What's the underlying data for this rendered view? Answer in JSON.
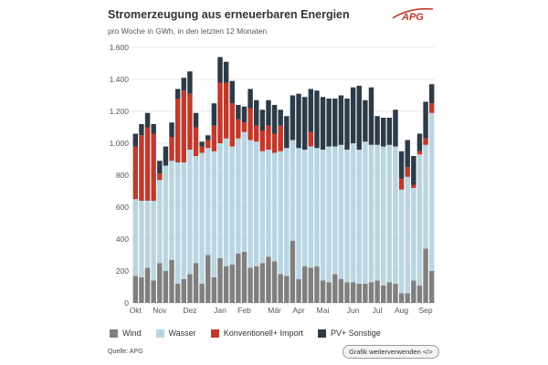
{
  "header": {
    "title": "Stromerzeugung aus erneuerbaren Energien",
    "subtitle": "pro Woche in GWh, in den letzten 12 Monaten",
    "logo_text": "APG"
  },
  "colors": {
    "wind": "#7f7f7f",
    "wasser": "#b9d5e1",
    "konv": "#c0392b",
    "pv": "#2c3b47",
    "grid": "#e0e0e0",
    "axis_text": "#555555"
  },
  "chart_data": {
    "type": "bar",
    "stacked": true,
    "title": "Stromerzeugung aus erneuerbaren Energien",
    "ylabel": "GWh",
    "ylim": [
      0,
      1600
    ],
    "yticks": [
      0,
      200,
      400,
      600,
      800,
      "1.000",
      "1.200",
      "1.400",
      "1.600"
    ],
    "ytick_values": [
      0,
      200,
      400,
      600,
      800,
      1000,
      1200,
      1400,
      1600
    ],
    "month_labels": [
      {
        "label": "Okt",
        "index": 0
      },
      {
        "label": "Nov",
        "index": 4
      },
      {
        "label": "Dez",
        "index": 9
      },
      {
        "label": "Jan",
        "index": 14
      },
      {
        "label": "Feb",
        "index": 18
      },
      {
        "label": "Mär",
        "index": 23
      },
      {
        "label": "Apr",
        "index": 27
      },
      {
        "label": "Mai",
        "index": 31
      },
      {
        "label": "Jun",
        "index": 36
      },
      {
        "label": "Jul",
        "index": 40
      },
      {
        "label": "Aug",
        "index": 44
      },
      {
        "label": "Sep",
        "index": 48
      }
    ],
    "series": [
      {
        "name": "Wind",
        "key": "wind",
        "values": [
          170,
          160,
          220,
          140,
          250,
          200,
          270,
          120,
          150,
          180,
          250,
          120,
          300,
          160,
          280,
          230,
          240,
          310,
          320,
          220,
          230,
          250,
          290,
          260,
          180,
          170,
          390,
          150,
          230,
          220,
          230,
          140,
          130,
          180,
          150,
          130,
          130,
          120,
          120,
          130,
          140,
          110,
          130,
          120,
          60,
          60,
          140,
          110,
          340,
          200
        ]
      },
      {
        "name": "Wasser",
        "key": "wasser",
        "values": [
          480,
          480,
          420,
          500,
          520,
          660,
          620,
          760,
          730,
          780,
          670,
          820,
          670,
          790,
          720,
          800,
          740,
          720,
          750,
          800,
          780,
          700,
          670,
          680,
          770,
          800,
          630,
          820,
          730,
          760,
          740,
          820,
          850,
          800,
          840,
          830,
          870,
          840,
          890,
          860,
          850,
          870,
          860,
          860,
          650,
          730,
          580,
          820,
          650,
          990
        ]
      },
      {
        "name": "Konventionell+ Import",
        "key": "konv",
        "values": [
          330,
          410,
          460,
          420,
          40,
          0,
          150,
          400,
          450,
          350,
          180,
          40,
          50,
          160,
          380,
          350,
          270,
          120,
          60,
          200,
          100,
          130,
          150,
          120,
          160,
          0,
          0,
          0,
          0,
          90,
          0,
          0,
          0,
          0,
          0,
          0,
          0,
          0,
          0,
          0,
          0,
          0,
          0,
          0,
          70,
          60,
          20,
          20,
          40,
          60
        ]
      },
      {
        "name": "PV+ Sonstige",
        "key": "pv",
        "values": [
          80,
          70,
          90,
          60,
          80,
          120,
          90,
          60,
          80,
          140,
          90,
          30,
          30,
          140,
          160,
          130,
          140,
          90,
          100,
          120,
          160,
          130,
          160,
          180,
          100,
          200,
          280,
          340,
          330,
          270,
          360,
          330,
          300,
          300,
          310,
          320,
          350,
          400,
          260,
          360,
          180,
          180,
          170,
          230,
          170,
          170,
          180,
          110,
          230,
          120
        ]
      }
    ]
  },
  "legend": [
    {
      "label": "Wind",
      "key": "wind"
    },
    {
      "label": "Wasser",
      "key": "wasser"
    },
    {
      "label": "Konventionell+ Import",
      "key": "konv"
    },
    {
      "label": "PV+ Sonstige",
      "key": "pv"
    }
  ],
  "footer": {
    "source": "Quelle: APG",
    "share_label": "Grafik weiterverwenden </>"
  }
}
